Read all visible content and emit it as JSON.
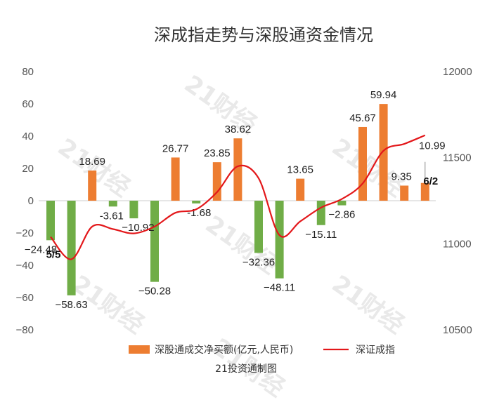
{
  "chart_data": {
    "type": "bar+line",
    "title": "深成指走势与深股通资金情况",
    "left_axis": {
      "ticks": [
        80,
        60,
        40,
        20,
        0,
        -20,
        -40,
        -60,
        -80
      ],
      "range": [
        -80,
        80
      ]
    },
    "right_axis": {
      "ticks": [
        12000,
        11500,
        11000,
        10500
      ],
      "range": [
        10500,
        12000
      ]
    },
    "bars": [
      {
        "value": -24.48,
        "label": "−24.48",
        "color": "#70ad47"
      },
      {
        "value": -58.63,
        "label": "−58.63",
        "color": "#70ad47"
      },
      {
        "value": 18.69,
        "label": "18.69",
        "color": "#ed7d31"
      },
      {
        "value": -3.61,
        "label": "-3.61",
        "color": "#70ad47"
      },
      {
        "value": -10.92,
        "label": "−10.92",
        "color": "#70ad47"
      },
      {
        "value": -50.28,
        "label": "−50.28",
        "color": "#70ad47"
      },
      {
        "value": 26.77,
        "label": "26.77",
        "color": "#ed7d31"
      },
      {
        "value": -1.68,
        "label": "-1.68",
        "color": "#70ad47"
      },
      {
        "value": 23.85,
        "label": "23.85",
        "color": "#ed7d31"
      },
      {
        "value": 38.62,
        "label": "38.62",
        "color": "#ed7d31"
      },
      {
        "value": -32.36,
        "label": "−32.36",
        "color": "#70ad47"
      },
      {
        "value": -48.11,
        "label": "−48.11",
        "color": "#70ad47"
      },
      {
        "value": 13.65,
        "label": "13.65",
        "color": "#ed7d31"
      },
      {
        "value": -15.11,
        "label": "−15.11",
        "color": "#70ad47"
      },
      {
        "value": -2.86,
        "label": "−2.86",
        "color": "#70ad47"
      },
      {
        "value": 45.67,
        "label": "45.67",
        "color": "#ed7d31"
      },
      {
        "value": 59.94,
        "label": "59.94",
        "color": "#ed7d31"
      },
      {
        "value": 9.35,
        "label": "9.35",
        "color": "#ed7d31"
      },
      {
        "value": 10.99,
        "label": "10.99",
        "color": "#ed7d31"
      }
    ],
    "line": {
      "color": "#e3171a",
      "values": [
        11040,
        10910,
        11100,
        11085,
        11060,
        11100,
        11180,
        11200,
        11300,
        11450,
        11380,
        11050,
        11130,
        11210,
        11260,
        11350,
        11540,
        11580,
        11630
      ]
    },
    "date_labels": [
      {
        "index": 0,
        "text": "5/5"
      },
      {
        "index": 18,
        "text": "6/2"
      }
    ],
    "legend": {
      "bar_label": "深股通成交净买额(亿元,人民币)",
      "line_label": "深证成指",
      "bar_color": "#ed7d31",
      "line_color": "#e3171a"
    },
    "source": "21投资通制图",
    "watermark": "21财经"
  }
}
